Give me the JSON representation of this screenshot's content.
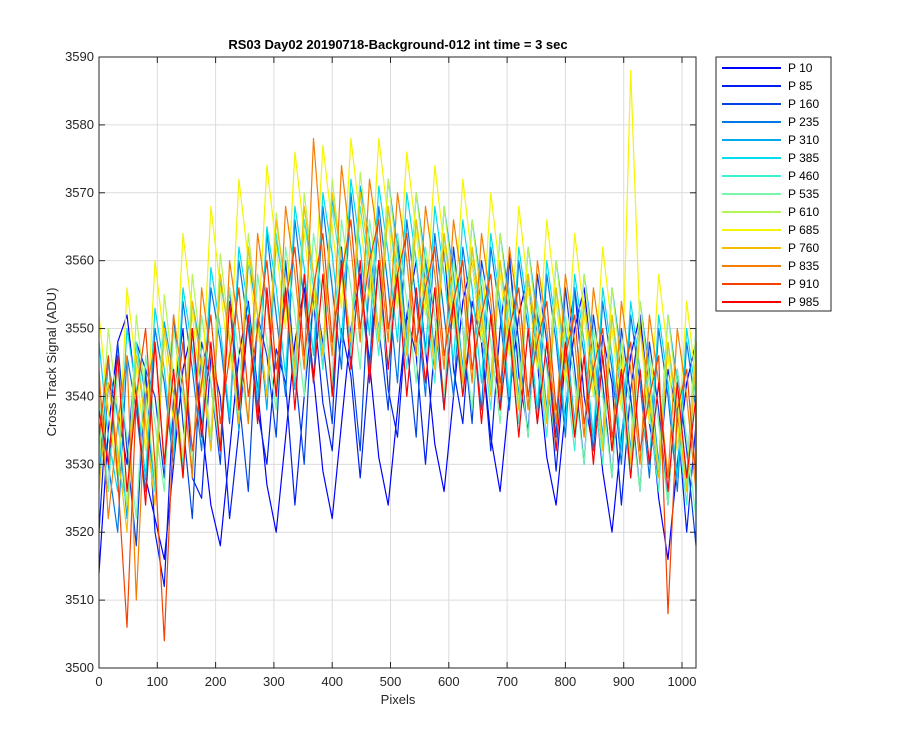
{
  "chart_data": {
    "type": "line",
    "title": "RS03 Day02 20190718-Background-012 int time = 3 sec",
    "xlabel": "Pixels",
    "ylabel": "Cross Track Signal (ADU)",
    "xlim": [
      0,
      1024
    ],
    "ylim": [
      3500,
      3590
    ],
    "xticks": [
      "0",
      "100",
      "200",
      "300",
      "400",
      "500",
      "600",
      "700",
      "800",
      "900",
      "1000"
    ],
    "yticks": [
      "3500",
      "3510",
      "3520",
      "3530",
      "3540",
      "3550",
      "3560",
      "3570",
      "3580",
      "3590"
    ],
    "grid": true,
    "legend_position": "outside-right-top",
    "x_start": 0,
    "x_step": 16,
    "series": [
      {
        "name": "P 10",
        "color": "#0000ff",
        "values": [
          3514,
          3535,
          3548,
          3552,
          3540,
          3528,
          3522,
          3516,
          3530,
          3544,
          3550,
          3536,
          3524,
          3518,
          3532,
          3546,
          3554,
          3541,
          3527,
          3520,
          3534,
          3548,
          3556,
          3543,
          3529,
          3522,
          3536,
          3550,
          3558,
          3545,
          3531,
          3524,
          3538,
          3552,
          3560,
          3547,
          3533,
          3526,
          3540,
          3554,
          3560,
          3548,
          3534,
          3526,
          3540,
          3552,
          3558,
          3545,
          3531,
          3524,
          3538,
          3550,
          3556,
          3543,
          3529,
          3520,
          3534,
          3546,
          3552,
          3539,
          3525,
          3516,
          3530,
          3542,
          3548,
          3536
        ]
      },
      {
        "name": "P 85",
        "color": "#001ef0",
        "values": [
          3520,
          3542,
          3538,
          3530,
          3548,
          3544,
          3520,
          3512,
          3540,
          3550,
          3528,
          3525,
          3546,
          3540,
          3522,
          3535,
          3552,
          3538,
          3530,
          3547,
          3542,
          3524,
          3540,
          3554,
          3539,
          3532,
          3550,
          3543,
          3528,
          3545,
          3560,
          3541,
          3534,
          3552,
          3546,
          3530,
          3548,
          3562,
          3544,
          3536,
          3554,
          3548,
          3532,
          3550,
          3561,
          3543,
          3535,
          3552,
          3545,
          3529,
          3546,
          3556,
          3540,
          3532,
          3549,
          3542,
          3524,
          3541,
          3551,
          3536,
          3528,
          3544,
          3537,
          3520,
          3536,
          3545
        ]
      },
      {
        "name": "P 160",
        "color": "#0044e6",
        "values": [
          3536,
          3526,
          3548,
          3532,
          3518,
          3544,
          3540,
          3528,
          3552,
          3536,
          3522,
          3548,
          3542,
          3530,
          3556,
          3540,
          3526,
          3552,
          3546,
          3534,
          3560,
          3544,
          3530,
          3556,
          3548,
          3536,
          3562,
          3546,
          3532,
          3558,
          3550,
          3538,
          3564,
          3548,
          3534,
          3560,
          3552,
          3538,
          3562,
          3550,
          3536,
          3560,
          3552,
          3538,
          3560,
          3548,
          3534,
          3558,
          3548,
          3534,
          3556,
          3544,
          3530,
          3552,
          3542,
          3528,
          3550,
          3540,
          3526,
          3548,
          3538,
          3524,
          3544,
          3532,
          3518,
          3540
        ]
      },
      {
        "name": "P 235",
        "color": "#0078e6",
        "values": [
          3542,
          3530,
          3520,
          3546,
          3538,
          3526,
          3550,
          3542,
          3530,
          3554,
          3544,
          3532,
          3556,
          3548,
          3536,
          3560,
          3550,
          3538,
          3564,
          3552,
          3540,
          3566,
          3554,
          3542,
          3568,
          3556,
          3544,
          3570,
          3556,
          3544,
          3568,
          3556,
          3542,
          3566,
          3554,
          3540,
          3564,
          3552,
          3540,
          3562,
          3552,
          3538,
          3562,
          3552,
          3538,
          3560,
          3550,
          3536,
          3558,
          3548,
          3534,
          3556,
          3546,
          3532,
          3554,
          3544,
          3530,
          3552,
          3542,
          3528,
          3550,
          3540,
          3526,
          3548,
          3538,
          3524
        ]
      },
      {
        "name": "P 310",
        "color": "#00aaee",
        "values": [
          3528,
          3545,
          3537,
          3522,
          3548,
          3540,
          3526,
          3551,
          3543,
          3529,
          3554,
          3546,
          3532,
          3557,
          3549,
          3535,
          3560,
          3552,
          3538,
          3563,
          3555,
          3541,
          3566,
          3558,
          3544,
          3569,
          3561,
          3547,
          3571,
          3563,
          3549,
          3572,
          3562,
          3548,
          3570,
          3560,
          3546,
          3568,
          3558,
          3544,
          3566,
          3556,
          3542,
          3564,
          3554,
          3540,
          3562,
          3552,
          3538,
          3560,
          3550,
          3536,
          3558,
          3548,
          3534,
          3556,
          3546,
          3532,
          3554,
          3544,
          3530,
          3552,
          3542,
          3528,
          3550,
          3540
        ]
      },
      {
        "name": "P 385",
        "color": "#00dcf0",
        "values": [
          3548,
          3534,
          3526,
          3550,
          3541,
          3528,
          3553,
          3544,
          3531,
          3556,
          3547,
          3534,
          3559,
          3550,
          3537,
          3562,
          3553,
          3540,
          3565,
          3556,
          3543,
          3568,
          3559,
          3546,
          3570,
          3561,
          3548,
          3572,
          3562,
          3549,
          3571,
          3561,
          3548,
          3570,
          3560,
          3546,
          3568,
          3558,
          3545,
          3566,
          3556,
          3542,
          3564,
          3554,
          3540,
          3562,
          3552,
          3538,
          3560,
          3550,
          3536,
          3558,
          3548,
          3534,
          3556,
          3546,
          3532,
          3554,
          3544,
          3530,
          3552,
          3542,
          3528,
          3550,
          3540,
          3526
        ]
      },
      {
        "name": "P 460",
        "color": "#3cf0d2",
        "values": [
          3532,
          3546,
          3530,
          3524,
          3548,
          3536,
          3526,
          3550,
          3540,
          3530,
          3554,
          3544,
          3534,
          3558,
          3548,
          3538,
          3562,
          3552,
          3540,
          3564,
          3554,
          3542,
          3566,
          3556,
          3544,
          3568,
          3558,
          3546,
          3568,
          3558,
          3546,
          3568,
          3556,
          3544,
          3566,
          3554,
          3542,
          3564,
          3552,
          3540,
          3562,
          3550,
          3538,
          3560,
          3548,
          3536,
          3558,
          3546,
          3534,
          3556,
          3544,
          3532,
          3554,
          3542,
          3530,
          3552,
          3540,
          3528,
          3550,
          3538,
          3526,
          3548,
          3536,
          3524,
          3546,
          3534
        ]
      },
      {
        "name": "P 535",
        "color": "#78f5aa",
        "values": [
          3540,
          3526,
          3544,
          3534,
          3522,
          3546,
          3536,
          3526,
          3550,
          3540,
          3530,
          3552,
          3542,
          3532,
          3556,
          3546,
          3536,
          3558,
          3548,
          3538,
          3562,
          3552,
          3540,
          3564,
          3554,
          3542,
          3566,
          3556,
          3544,
          3566,
          3556,
          3544,
          3564,
          3554,
          3542,
          3562,
          3552,
          3540,
          3560,
          3550,
          3538,
          3558,
          3548,
          3536,
          3556,
          3546,
          3534,
          3554,
          3544,
          3532,
          3552,
          3542,
          3530,
          3550,
          3540,
          3528,
          3548,
          3538,
          3526,
          3546,
          3536,
          3524,
          3544,
          3534,
          3522,
          3542
        ]
      },
      {
        "name": "P 610",
        "color": "#b4f55a",
        "values": [
          3530,
          3550,
          3538,
          3524,
          3552,
          3540,
          3528,
          3555,
          3543,
          3531,
          3558,
          3546,
          3534,
          3561,
          3549,
          3537,
          3564,
          3552,
          3540,
          3567,
          3555,
          3543,
          3570,
          3558,
          3546,
          3572,
          3560,
          3548,
          3573,
          3561,
          3549,
          3572,
          3560,
          3547,
          3570,
          3558,
          3545,
          3568,
          3556,
          3543,
          3566,
          3554,
          3541,
          3564,
          3552,
          3539,
          3562,
          3550,
          3537,
          3560,
          3548,
          3535,
          3558,
          3546,
          3533,
          3556,
          3544,
          3531,
          3554,
          3542,
          3529,
          3552,
          3540,
          3527,
          3550,
          3538
        ]
      },
      {
        "name": "P 685",
        "color": "#f5f500",
        "values": [
          3552,
          3538,
          3528,
          3556,
          3544,
          3532,
          3560,
          3548,
          3536,
          3564,
          3552,
          3540,
          3568,
          3556,
          3544,
          3572,
          3560,
          3548,
          3574,
          3562,
          3550,
          3576,
          3564,
          3552,
          3577,
          3565,
          3553,
          3578,
          3566,
          3554,
          3578,
          3566,
          3553,
          3576,
          3564,
          3552,
          3574,
          3562,
          3550,
          3572,
          3560,
          3548,
          3570,
          3558,
          3546,
          3568,
          3556,
          3544,
          3566,
          3554,
          3542,
          3564,
          3552,
          3540,
          3562,
          3550,
          3538,
          3588,
          3550,
          3536,
          3558,
          3546,
          3532,
          3554,
          3542,
          3530
        ]
      },
      {
        "name": "P 760",
        "color": "#f5be00",
        "values": [
          3526,
          3542,
          3532,
          3520,
          3546,
          3536,
          3524,
          3550,
          3540,
          3528,
          3554,
          3544,
          3532,
          3558,
          3548,
          3536,
          3562,
          3552,
          3540,
          3566,
          3556,
          3544,
          3568,
          3558,
          3546,
          3570,
          3560,
          3548,
          3570,
          3560,
          3548,
          3568,
          3558,
          3546,
          3566,
          3556,
          3544,
          3564,
          3554,
          3542,
          3562,
          3552,
          3540,
          3560,
          3550,
          3538,
          3558,
          3548,
          3536,
          3556,
          3546,
          3534,
          3554,
          3544,
          3532,
          3552,
          3542,
          3530,
          3550,
          3540,
          3528,
          3548,
          3538,
          3526,
          3546,
          3536
        ]
      },
      {
        "name": "P 835",
        "color": "#f57d00",
        "values": [
          3544,
          3522,
          3536,
          3546,
          3510,
          3540,
          3548,
          3530,
          3552,
          3542,
          3528,
          3556,
          3546,
          3532,
          3560,
          3550,
          3536,
          3564,
          3554,
          3540,
          3568,
          3558,
          3544,
          3578,
          3560,
          3546,
          3574,
          3562,
          3548,
          3572,
          3562,
          3548,
          3570,
          3560,
          3546,
          3568,
          3558,
          3544,
          3566,
          3556,
          3542,
          3564,
          3554,
          3540,
          3562,
          3552,
          3538,
          3560,
          3550,
          3536,
          3558,
          3548,
          3534,
          3556,
          3546,
          3532,
          3554,
          3544,
          3530,
          3552,
          3542,
          3528,
          3550,
          3540,
          3526,
          3548
        ]
      },
      {
        "name": "P 910",
        "color": "#f54100",
        "values": [
          3534,
          3546,
          3528,
          3506,
          3540,
          3550,
          3530,
          3504,
          3536,
          3548,
          3532,
          3542,
          3552,
          3536,
          3546,
          3556,
          3540,
          3550,
          3560,
          3544,
          3554,
          3562,
          3546,
          3556,
          3564,
          3548,
          3558,
          3566,
          3550,
          3560,
          3566,
          3550,
          3558,
          3564,
          3548,
          3556,
          3562,
          3546,
          3554,
          3560,
          3544,
          3552,
          3558,
          3542,
          3550,
          3556,
          3540,
          3548,
          3554,
          3538,
          3546,
          3552,
          3536,
          3544,
          3550,
          3534,
          3542,
          3548,
          3532,
          3540,
          3546,
          3508,
          3538,
          3544,
          3528,
          3536
        ]
      },
      {
        "name": "P 985",
        "color": "#ff0000",
        "values": [
          3538,
          3530,
          3546,
          3526,
          3540,
          3524,
          3548,
          3530,
          3544,
          3528,
          3550,
          3534,
          3548,
          3532,
          3554,
          3538,
          3552,
          3536,
          3556,
          3540,
          3556,
          3538,
          3558,
          3542,
          3558,
          3540,
          3560,
          3544,
          3560,
          3542,
          3560,
          3544,
          3558,
          3540,
          3556,
          3542,
          3556,
          3538,
          3554,
          3540,
          3552,
          3536,
          3552,
          3538,
          3550,
          3534,
          3550,
          3536,
          3548,
          3532,
          3548,
          3534,
          3546,
          3530,
          3546,
          3532,
          3544,
          3528,
          3544,
          3530,
          3542,
          3526,
          3542,
          3528,
          3540,
          3534
        ]
      }
    ]
  }
}
